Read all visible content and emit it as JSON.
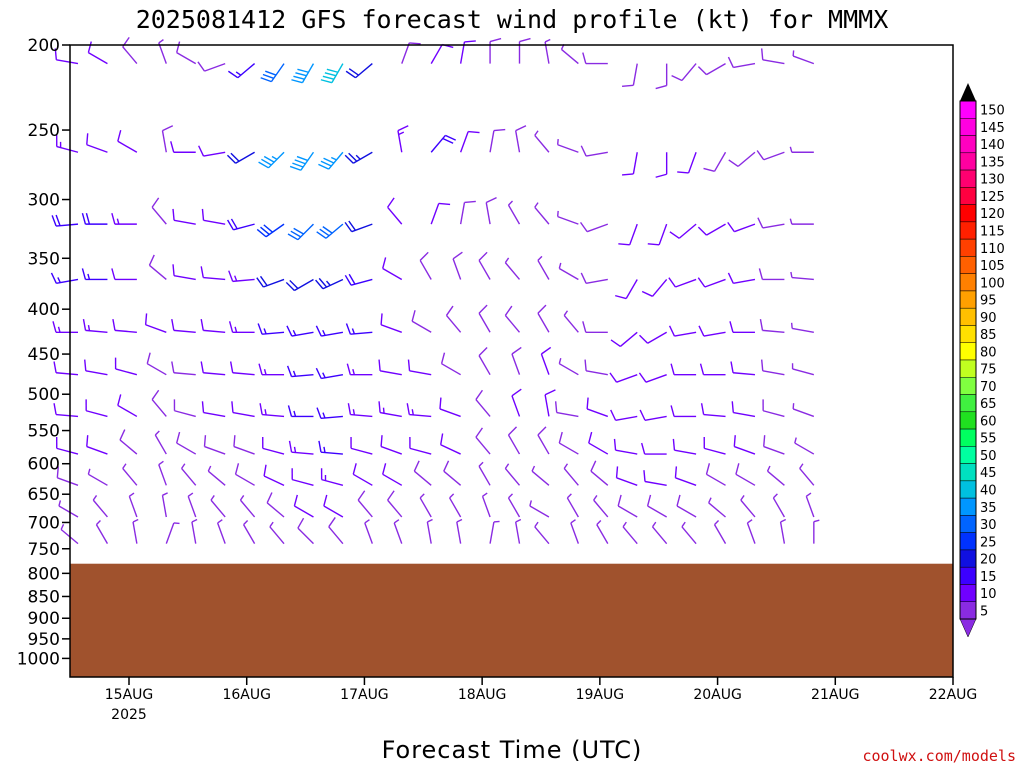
{
  "chart_data": {
    "type": "wind-barb-profile",
    "title": "2025081412 GFS forecast wind profile (kt) for MMMX",
    "xlabel": "Forecast Time (UTC)",
    "ylabel": "",
    "credit": "coolwx.com/models",
    "x_year_label": "2025",
    "x_ticks": [
      "15AUG",
      "16AUG",
      "17AUG",
      "18AUG",
      "19AUG",
      "20AUG",
      "21AUG",
      "22AUG"
    ],
    "xlim_hours": [
      0,
      180
    ],
    "y_ticks": [
      200,
      250,
      300,
      350,
      400,
      450,
      500,
      550,
      600,
      650,
      700,
      750,
      800,
      850,
      900,
      950,
      1000
    ],
    "ylim_hpa": [
      200,
      1050
    ],
    "y_scale": "log",
    "terrain_color": "#a0522d",
    "surface_pressure_hpa": 780,
    "colorbar": {
      "levels": [
        5,
        10,
        15,
        20,
        25,
        30,
        35,
        40,
        45,
        50,
        55,
        60,
        65,
        70,
        75,
        80,
        85,
        90,
        95,
        100,
        105,
        110,
        115,
        120,
        125,
        130,
        135,
        140,
        145,
        150
      ],
      "colors": [
        "#8a2be2",
        "#7000ff",
        "#3c00ff",
        "#1010e0",
        "#0032ff",
        "#0064ff",
        "#0096ff",
        "#00c0e0",
        "#00e0c0",
        "#00ffa0",
        "#00ff60",
        "#20e020",
        "#40f040",
        "#80ff40",
        "#c0ff20",
        "#ffff00",
        "#ffe000",
        "#ffc000",
        "#ffa000",
        "#ff8000",
        "#ff6000",
        "#ff4000",
        "#ff2000",
        "#ff0000",
        "#ff0040",
        "#ff0070",
        "#ff00a0",
        "#ff00c0",
        "#ff00e0",
        "#ff00ff"
      ]
    },
    "barb_levels_hpa": [
      210,
      265,
      320,
      370,
      425,
      475,
      530,
      585,
      635,
      690,
      740
    ],
    "profiles": [
      {
        "hour": 0,
        "wind": [
          [
            280,
            12
          ],
          [
            285,
            14
          ],
          [
            265,
            18
          ],
          [
            260,
            15
          ],
          [
            270,
            14
          ],
          [
            275,
            12
          ],
          [
            275,
            12
          ],
          [
            285,
            10
          ],
          [
            290,
            8
          ],
          [
            300,
            7
          ],
          [
            310,
            6
          ]
        ]
      },
      {
        "hour": 6,
        "wind": [
          [
            300,
            10
          ],
          [
            290,
            12
          ],
          [
            270,
            18
          ],
          [
            270,
            16
          ],
          [
            275,
            14
          ],
          [
            280,
            12
          ],
          [
            285,
            12
          ],
          [
            290,
            10
          ],
          [
            300,
            7
          ],
          [
            320,
            6
          ],
          [
            330,
            5
          ]
        ]
      },
      {
        "hour": 12,
        "wind": [
          [
            320,
            8
          ],
          [
            300,
            10
          ],
          [
            270,
            14
          ],
          [
            270,
            12
          ],
          [
            275,
            12
          ],
          [
            285,
            10
          ],
          [
            300,
            10
          ],
          [
            310,
            8
          ],
          [
            320,
            7
          ],
          [
            340,
            6
          ],
          [
            350,
            5
          ]
        ]
      },
      {
        "hour": 18,
        "wind": [
          [
            340,
            6
          ],
          [
            350,
            8
          ],
          [
            320,
            8
          ],
          [
            310,
            8
          ],
          [
            290,
            10
          ],
          [
            300,
            8
          ],
          [
            320,
            8
          ],
          [
            330,
            7
          ],
          [
            340,
            6
          ],
          [
            350,
            6
          ],
          [
            20,
            5
          ]
        ]
      },
      {
        "hour": 24,
        "wind": [
          [
            300,
            8
          ],
          [
            270,
            10
          ],
          [
            280,
            10
          ],
          [
            280,
            10
          ],
          [
            275,
            10
          ],
          [
            275,
            9
          ],
          [
            285,
            9
          ],
          [
            300,
            8
          ],
          [
            320,
            6
          ],
          [
            340,
            6
          ],
          [
            350,
            5
          ]
        ]
      },
      {
        "hour": 30,
        "wind": [
          [
            250,
            8
          ],
          [
            260,
            10
          ],
          [
            280,
            10
          ],
          [
            275,
            12
          ],
          [
            275,
            12
          ],
          [
            275,
            10
          ],
          [
            280,
            10
          ],
          [
            290,
            8
          ],
          [
            310,
            7
          ],
          [
            320,
            6
          ],
          [
            340,
            5
          ]
        ]
      },
      {
        "hour": 36,
        "wind": [
          [
            230,
            15
          ],
          [
            240,
            20
          ],
          [
            255,
            18
          ],
          [
            265,
            14
          ],
          [
            270,
            13
          ],
          [
            275,
            12
          ],
          [
            280,
            11
          ],
          [
            290,
            9
          ],
          [
            300,
            8
          ],
          [
            320,
            6
          ],
          [
            330,
            5
          ]
        ]
      },
      {
        "hour": 42,
        "wind": [
          [
            215,
            32
          ],
          [
            225,
            35
          ],
          [
            235,
            28
          ],
          [
            250,
            20
          ],
          [
            265,
            15
          ],
          [
            270,
            14
          ],
          [
            275,
            13
          ],
          [
            285,
            11
          ],
          [
            295,
            10
          ],
          [
            310,
            8
          ],
          [
            320,
            6
          ]
        ]
      },
      {
        "hour": 48,
        "wind": [
          [
            210,
            38
          ],
          [
            215,
            38
          ],
          [
            225,
            32
          ],
          [
            240,
            22
          ],
          [
            260,
            16
          ],
          [
            265,
            16
          ],
          [
            270,
            16
          ],
          [
            275,
            14
          ],
          [
            285,
            12
          ],
          [
            300,
            10
          ],
          [
            315,
            8
          ]
        ]
      },
      {
        "hour": 54,
        "wind": [
          [
            210,
            40
          ],
          [
            220,
            36
          ],
          [
            230,
            30
          ],
          [
            245,
            24
          ],
          [
            260,
            17
          ],
          [
            260,
            17
          ],
          [
            265,
            16
          ],
          [
            275,
            15
          ],
          [
            285,
            13
          ],
          [
            300,
            10
          ],
          [
            320,
            8
          ]
        ]
      },
      {
        "hour": 60,
        "wind": [
          [
            230,
            20
          ],
          [
            240,
            24
          ],
          [
            250,
            20
          ],
          [
            255,
            18
          ],
          [
            265,
            15
          ],
          [
            270,
            14
          ],
          [
            275,
            14
          ],
          [
            285,
            12
          ],
          [
            300,
            10
          ],
          [
            320,
            8
          ],
          [
            340,
            6
          ]
        ]
      },
      {
        "hour": 66,
        "wind": [
          [
            20,
            8
          ],
          [
            350,
            14
          ],
          [
            320,
            10
          ],
          [
            300,
            10
          ],
          [
            290,
            10
          ],
          [
            280,
            12
          ],
          [
            280,
            14
          ],
          [
            290,
            12
          ],
          [
            300,
            10
          ],
          [
            320,
            8
          ],
          [
            340,
            6
          ]
        ]
      },
      {
        "hour": 72,
        "wind": [
          [
            30,
            10
          ],
          [
            40,
            18
          ],
          [
            20,
            10
          ],
          [
            330,
            8
          ],
          [
            300,
            8
          ],
          [
            280,
            10
          ],
          [
            275,
            14
          ],
          [
            285,
            12
          ],
          [
            310,
            8
          ],
          [
            330,
            6
          ],
          [
            350,
            5
          ]
        ]
      },
      {
        "hour": 78,
        "wind": [
          [
            10,
            10
          ],
          [
            20,
            10
          ],
          [
            10,
            8
          ],
          [
            340,
            8
          ],
          [
            320,
            8
          ],
          [
            300,
            8
          ],
          [
            290,
            10
          ],
          [
            295,
            10
          ],
          [
            310,
            8
          ],
          [
            330,
            6
          ],
          [
            350,
            5
          ]
        ]
      },
      {
        "hour": 84,
        "wind": [
          [
            0,
            8
          ],
          [
            10,
            8
          ],
          [
            350,
            8
          ],
          [
            330,
            8
          ],
          [
            330,
            8
          ],
          [
            330,
            8
          ],
          [
            320,
            8
          ],
          [
            320,
            8
          ],
          [
            330,
            7
          ],
          [
            340,
            6
          ],
          [
            10,
            5
          ]
        ]
      },
      {
        "hour": 90,
        "wind": [
          [
            0,
            8
          ],
          [
            350,
            8
          ],
          [
            330,
            7
          ],
          [
            320,
            7
          ],
          [
            320,
            8
          ],
          [
            340,
            8
          ],
          [
            340,
            10
          ],
          [
            330,
            8
          ],
          [
            320,
            7
          ],
          [
            330,
            6
          ],
          [
            350,
            5
          ]
        ]
      },
      {
        "hour": 96,
        "wind": [
          [
            350,
            6
          ],
          [
            320,
            6
          ],
          [
            320,
            6
          ],
          [
            330,
            6
          ],
          [
            330,
            8
          ],
          [
            340,
            10
          ],
          [
            350,
            10
          ],
          [
            330,
            8
          ],
          [
            310,
            7
          ],
          [
            300,
            6
          ],
          [
            320,
            5
          ]
        ]
      },
      {
        "hour": 102,
        "wind": [
          [
            310,
            6
          ],
          [
            290,
            6
          ],
          [
            290,
            6
          ],
          [
            300,
            6
          ],
          [
            320,
            6
          ],
          [
            300,
            6
          ],
          [
            280,
            8
          ],
          [
            300,
            8
          ],
          [
            320,
            7
          ],
          [
            330,
            6
          ],
          [
            340,
            5
          ]
        ]
      },
      {
        "hour": 108,
        "wind": [
          [
            270,
            8
          ],
          [
            260,
            8
          ],
          [
            250,
            8
          ],
          [
            260,
            8
          ],
          [
            270,
            8
          ],
          [
            280,
            8
          ],
          [
            290,
            10
          ],
          [
            300,
            10
          ],
          [
            310,
            8
          ],
          [
            320,
            6
          ],
          [
            330,
            5
          ]
        ]
      },
      {
        "hour": 114,
        "wind": [
          [
            190,
            8
          ],
          [
            190,
            10
          ],
          [
            200,
            10
          ],
          [
            210,
            10
          ],
          [
            230,
            10
          ],
          [
            250,
            10
          ],
          [
            260,
            12
          ],
          [
            280,
            12
          ],
          [
            290,
            10
          ],
          [
            300,
            8
          ],
          [
            320,
            6
          ]
        ]
      },
      {
        "hour": 120,
        "wind": [
          [
            180,
            8
          ],
          [
            180,
            10
          ],
          [
            200,
            10
          ],
          [
            220,
            10
          ],
          [
            240,
            10
          ],
          [
            250,
            12
          ],
          [
            260,
            12
          ],
          [
            270,
            12
          ],
          [
            280,
            10
          ],
          [
            300,
            8
          ],
          [
            320,
            6
          ]
        ]
      },
      {
        "hour": 126,
        "wind": [
          [
            220,
            8
          ],
          [
            200,
            10
          ],
          [
            230,
            10
          ],
          [
            250,
            10
          ],
          [
            260,
            10
          ],
          [
            270,
            10
          ],
          [
            270,
            12
          ],
          [
            280,
            12
          ],
          [
            290,
            10
          ],
          [
            300,
            8
          ],
          [
            320,
            6
          ]
        ]
      },
      {
        "hour": 132,
        "wind": [
          [
            240,
            8
          ],
          [
            210,
            8
          ],
          [
            240,
            10
          ],
          [
            250,
            10
          ],
          [
            260,
            10
          ],
          [
            270,
            10
          ],
          [
            275,
            12
          ],
          [
            285,
            10
          ],
          [
            300,
            8
          ],
          [
            310,
            6
          ],
          [
            330,
            5
          ]
        ]
      },
      {
        "hour": 138,
        "wind": [
          [
            260,
            8
          ],
          [
            230,
            8
          ],
          [
            250,
            10
          ],
          [
            260,
            10
          ],
          [
            270,
            10
          ],
          [
            275,
            10
          ],
          [
            280,
            10
          ],
          [
            290,
            10
          ],
          [
            300,
            8
          ],
          [
            320,
            6
          ],
          [
            340,
            5
          ]
        ]
      },
      {
        "hour": 144,
        "wind": [
          [
            280,
            8
          ],
          [
            250,
            8
          ],
          [
            260,
            8
          ],
          [
            270,
            8
          ],
          [
            275,
            8
          ],
          [
            280,
            8
          ],
          [
            285,
            8
          ],
          [
            290,
            8
          ],
          [
            310,
            7
          ],
          [
            330,
            6
          ],
          [
            350,
            5
          ]
        ]
      },
      {
        "hour": 150,
        "wind": [
          [
            290,
            6
          ],
          [
            270,
            6
          ],
          [
            270,
            6
          ],
          [
            275,
            6
          ],
          [
            280,
            6
          ],
          [
            285,
            6
          ],
          [
            290,
            6
          ],
          [
            300,
            6
          ],
          [
            320,
            6
          ],
          [
            340,
            5
          ],
          [
            0,
            5
          ]
        ]
      }
    ]
  }
}
